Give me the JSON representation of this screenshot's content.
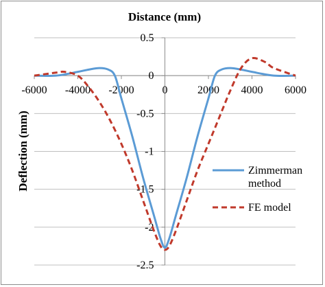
{
  "chart_data": {
    "type": "line",
    "title": "Distance (mm)",
    "xlabel": "",
    "ylabel": "Deflection (mm)",
    "xlim": [
      -6000,
      6000
    ],
    "ylim": [
      -2.5,
      0.5
    ],
    "xticks": [
      -6000,
      -4000,
      -2000,
      0,
      2000,
      4000,
      6000
    ],
    "yticks": [
      0.5,
      0,
      -0.5,
      -1,
      -1.5,
      -2,
      -2.5
    ],
    "grid": "horizontal",
    "legend_position": "right",
    "series": [
      {
        "name": "Zimmerman method",
        "color": "#5b9bd5",
        "style": "solid",
        "x": [
          -6000,
          -5000,
          -4000,
          -3500,
          -3000,
          -2600,
          -2300,
          -2000,
          -1500,
          -1000,
          -500,
          -200,
          0,
          200,
          500,
          1000,
          1500,
          2000,
          2300,
          2600,
          3000,
          3500,
          4000,
          5000,
          6000
        ],
        "y": [
          0.0,
          0.0,
          0.05,
          0.08,
          0.1,
          0.08,
          0.0,
          -0.3,
          -0.8,
          -1.35,
          -1.85,
          -2.15,
          -2.27,
          -2.15,
          -1.85,
          -1.35,
          -0.8,
          -0.3,
          0.0,
          0.08,
          0.1,
          0.08,
          0.05,
          0.0,
          0.0
        ]
      },
      {
        "name": "FE model",
        "color": "#c0392b",
        "style": "dashed",
        "x": [
          -6000,
          -5000,
          -4600,
          -4000,
          -3500,
          -3000,
          -2500,
          -2000,
          -1500,
          -1000,
          -500,
          -200,
          0,
          200,
          500,
          1000,
          1500,
          2000,
          2500,
          3000,
          3500,
          4000,
          4600,
          5000,
          6000
        ],
        "y": [
          0.0,
          0.04,
          0.05,
          0.0,
          -0.15,
          -0.35,
          -0.6,
          -0.9,
          -1.25,
          -1.65,
          -2.05,
          -2.25,
          -2.3,
          -2.25,
          -2.05,
          -1.65,
          -1.25,
          -0.9,
          -0.55,
          -0.2,
          0.1,
          0.23,
          0.18,
          0.1,
          0.0
        ]
      }
    ]
  }
}
